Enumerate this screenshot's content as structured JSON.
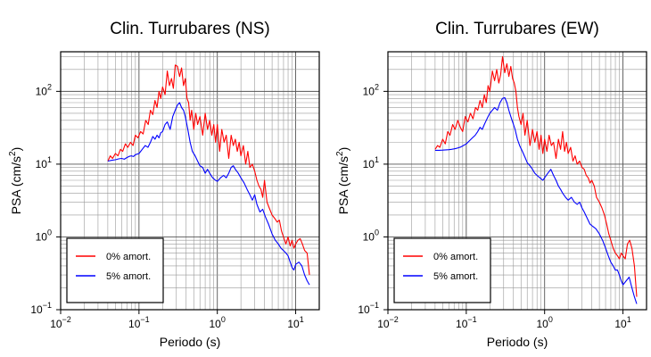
{
  "chart_data": [
    {
      "type": "line",
      "title": "Clin. Turrubares (NS)",
      "xlabel": "Periodo (s)",
      "ylabel": {
        "base": "PSA (cm/s",
        "sup": "2",
        "end": ")"
      },
      "xscale": "log",
      "yscale": "log",
      "xlim": [
        0.01,
        20
      ],
      "ylim": [
        0.1,
        350
      ],
      "grid": true,
      "legend_position": "bottom-left",
      "xticks": [
        {
          "value": 0.01,
          "base": "10",
          "exp": "−2"
        },
        {
          "value": 0.1,
          "base": "10",
          "exp": "−1"
        },
        {
          "value": 1,
          "base": "10",
          "exp": "0"
        },
        {
          "value": 10,
          "base": "10",
          "exp": "1"
        }
      ],
      "yticks": [
        {
          "value": 0.1,
          "base": "10",
          "exp": "−1"
        },
        {
          "value": 1,
          "base": "10",
          "exp": "0"
        },
        {
          "value": 10,
          "base": "10",
          "exp": "1"
        },
        {
          "value": 100,
          "base": "10",
          "exp": "2"
        }
      ],
      "series": [
        {
          "name": "0% amort.",
          "color": "#ff0000",
          "x": [
            0.04,
            0.043,
            0.046,
            0.05,
            0.054,
            0.058,
            0.062,
            0.067,
            0.072,
            0.078,
            0.084,
            0.09,
            0.097,
            0.105,
            0.113,
            0.122,
            0.131,
            0.14,
            0.15,
            0.16,
            0.17,
            0.18,
            0.19,
            0.2,
            0.215,
            0.23,
            0.245,
            0.26,
            0.275,
            0.29,
            0.31,
            0.33,
            0.35,
            0.37,
            0.39,
            0.41,
            0.43,
            0.45,
            0.47,
            0.5,
            0.53,
            0.56,
            0.6,
            0.65,
            0.7,
            0.75,
            0.8,
            0.85,
            0.9,
            0.95,
            1.0,
            1.07,
            1.14,
            1.22,
            1.3,
            1.4,
            1.5,
            1.6,
            1.7,
            1.8,
            1.9,
            2.0,
            2.15,
            2.3,
            2.45,
            2.6,
            2.8,
            3.0,
            3.2,
            3.4,
            3.6,
            3.8,
            4.0,
            4.3,
            4.6,
            5.0,
            5.4,
            5.8,
            6.2,
            6.6,
            7.0,
            7.5,
            8.0,
            8.5,
            9.0,
            9.5,
            10.0,
            10.7,
            11.4,
            12.2,
            13.0,
            14.0,
            15.0
          ],
          "y": [
            11,
            13,
            12,
            14,
            13,
            16,
            15,
            19,
            17,
            20,
            18,
            25,
            23,
            28,
            26,
            40,
            35,
            55,
            48,
            75,
            60,
            100,
            80,
            115,
            90,
            190,
            120,
            150,
            110,
            230,
            220,
            160,
            210,
            120,
            150,
            80,
            70,
            40,
            55,
            30,
            50,
            35,
            45,
            25,
            50,
            30,
            40,
            25,
            35,
            20,
            35,
            15,
            30,
            20,
            25,
            12,
            25,
            18,
            22,
            15,
            20,
            13,
            18,
            10,
            15,
            9,
            10,
            8,
            6,
            5,
            4.5,
            3.5,
            6,
            3,
            2.5,
            2.0,
            1.8,
            1.6,
            1.7,
            1.2,
            1.0,
            0.8,
            1.0,
            0.75,
            0.9,
            0.7,
            0.8,
            0.9,
            0.95,
            0.8,
            0.65,
            0.6,
            0.3
          ]
        },
        {
          "name": "5% amort.",
          "color": "#0000ff",
          "x": [
            0.04,
            0.045,
            0.05,
            0.055,
            0.06,
            0.065,
            0.07,
            0.075,
            0.08,
            0.085,
            0.09,
            0.1,
            0.11,
            0.12,
            0.13,
            0.14,
            0.15,
            0.16,
            0.17,
            0.18,
            0.19,
            0.2,
            0.215,
            0.23,
            0.25,
            0.27,
            0.29,
            0.31,
            0.33,
            0.35,
            0.37,
            0.39,
            0.42,
            0.45,
            0.48,
            0.52,
            0.56,
            0.6,
            0.65,
            0.7,
            0.75,
            0.8,
            0.87,
            0.95,
            1.0,
            1.1,
            1.2,
            1.3,
            1.4,
            1.5,
            1.6,
            1.7,
            1.85,
            2.0,
            2.2,
            2.4,
            2.6,
            2.8,
            3.0,
            3.2,
            3.5,
            3.8,
            4.1,
            4.5,
            5.0,
            5.5,
            6.0,
            6.5,
            7.0,
            7.5,
            8.0,
            8.5,
            9.0,
            9.5,
            10.0,
            11.0,
            12.0,
            13.0,
            14.0,
            15.0
          ],
          "y": [
            11,
            11.3,
            11.5,
            11.8,
            12,
            11.7,
            12.3,
            12.8,
            13,
            12.7,
            13.5,
            14,
            16,
            18,
            17,
            20,
            24,
            22,
            25,
            23,
            27,
            28,
            35,
            38,
            30,
            45,
            55,
            65,
            70,
            60,
            55,
            45,
            30,
            20,
            15,
            13,
            11,
            9.5,
            9,
            7.5,
            8.5,
            7.5,
            6.5,
            6,
            5.8,
            6.5,
            7,
            6.5,
            7.5,
            9,
            9.5,
            8.5,
            7.5,
            6.5,
            5.5,
            4.5,
            3.8,
            3.2,
            3.8,
            2.8,
            2.2,
            2.4,
            1.9,
            1.5,
            1.1,
            0.9,
            0.8,
            0.7,
            0.65,
            0.6,
            0.55,
            0.45,
            0.38,
            0.35,
            0.42,
            0.45,
            0.4,
            0.3,
            0.25,
            0.22
          ]
        }
      ]
    },
    {
      "type": "line",
      "title": "Clin. Turrubares (EW)",
      "xlabel": "Periodo (s)",
      "ylabel": {
        "base": "PSA (cm/s",
        "sup": "2",
        "end": ")"
      },
      "xscale": "log",
      "yscale": "log",
      "xlim": [
        0.01,
        20
      ],
      "ylim": [
        0.1,
        350
      ],
      "grid": true,
      "legend_position": "bottom-left",
      "xticks": [
        {
          "value": 0.01,
          "base": "10",
          "exp": "−2"
        },
        {
          "value": 0.1,
          "base": "10",
          "exp": "−1"
        },
        {
          "value": 1,
          "base": "10",
          "exp": "0"
        },
        {
          "value": 10,
          "base": "10",
          "exp": "1"
        }
      ],
      "yticks": [
        {
          "value": 0.1,
          "base": "10",
          "exp": "−1"
        },
        {
          "value": 1,
          "base": "10",
          "exp": "0"
        },
        {
          "value": 10,
          "base": "10",
          "exp": "1"
        },
        {
          "value": 100,
          "base": "10",
          "exp": "2"
        }
      ],
      "series": [
        {
          "name": "0% amort.",
          "color": "#ff0000",
          "x": [
            0.04,
            0.043,
            0.046,
            0.05,
            0.054,
            0.058,
            0.062,
            0.067,
            0.072,
            0.078,
            0.084,
            0.09,
            0.097,
            0.105,
            0.113,
            0.122,
            0.131,
            0.14,
            0.15,
            0.16,
            0.17,
            0.18,
            0.19,
            0.2,
            0.215,
            0.23,
            0.245,
            0.26,
            0.275,
            0.29,
            0.31,
            0.33,
            0.35,
            0.37,
            0.39,
            0.41,
            0.43,
            0.45,
            0.47,
            0.5,
            0.53,
            0.56,
            0.6,
            0.65,
            0.7,
            0.75,
            0.8,
            0.85,
            0.9,
            0.95,
            1.0,
            1.07,
            1.14,
            1.22,
            1.3,
            1.4,
            1.5,
            1.6,
            1.7,
            1.8,
            1.9,
            2.0,
            2.15,
            2.3,
            2.45,
            2.6,
            2.8,
            3.0,
            3.2,
            3.4,
            3.6,
            3.8,
            4.0,
            4.3,
            4.6,
            5.0,
            5.4,
            5.8,
            6.2,
            6.6,
            7.0,
            7.5,
            8.0,
            8.5,
            9.0,
            9.5,
            10.0,
            10.7,
            11.4,
            12.2,
            13.0,
            14.0,
            15.0
          ],
          "y": [
            16,
            18,
            17,
            22,
            19,
            28,
            25,
            35,
            30,
            40,
            32,
            28,
            45,
            38,
            50,
            42,
            60,
            55,
            75,
            60,
            90,
            70,
            120,
            100,
            190,
            140,
            200,
            130,
            170,
            300,
            180,
            240,
            160,
            220,
            150,
            130,
            100,
            60,
            45,
            35,
            50,
            25,
            40,
            18,
            30,
            20,
            28,
            16,
            25,
            14,
            22,
            15,
            25,
            18,
            20,
            12,
            22,
            16,
            28,
            15,
            20,
            14,
            17,
            11,
            13,
            10,
            11,
            9,
            8.5,
            7,
            6.5,
            5.5,
            6,
            5,
            3.5,
            3.0,
            2.5,
            2.0,
            1.5,
            1.1,
            0.9,
            0.7,
            0.6,
            0.55,
            0.5,
            0.6,
            0.55,
            0.5,
            0.8,
            0.9,
            0.7,
            0.4,
            0.15
          ]
        },
        {
          "name": "5% amort.",
          "color": "#0000ff",
          "x": [
            0.04,
            0.045,
            0.05,
            0.055,
            0.06,
            0.065,
            0.07,
            0.075,
            0.08,
            0.085,
            0.09,
            0.1,
            0.11,
            0.12,
            0.13,
            0.14,
            0.15,
            0.16,
            0.17,
            0.18,
            0.19,
            0.2,
            0.215,
            0.23,
            0.25,
            0.27,
            0.29,
            0.31,
            0.33,
            0.35,
            0.37,
            0.39,
            0.42,
            0.45,
            0.48,
            0.52,
            0.56,
            0.6,
            0.65,
            0.7,
            0.75,
            0.8,
            0.87,
            0.95,
            1.0,
            1.1,
            1.2,
            1.3,
            1.4,
            1.5,
            1.6,
            1.7,
            1.85,
            2.0,
            2.2,
            2.4,
            2.6,
            2.8,
            3.0,
            3.2,
            3.5,
            3.8,
            4.1,
            4.5,
            5.0,
            5.5,
            6.0,
            6.5,
            7.0,
            7.5,
            8.0,
            8.5,
            9.0,
            9.5,
            10.0,
            11.0,
            12.0,
            13.0,
            14.0,
            15.0
          ],
          "y": [
            15.5,
            15.5,
            15.6,
            15.7,
            15.8,
            16,
            16.2,
            16.5,
            16.8,
            17.2,
            17.8,
            19,
            21,
            23,
            25,
            28,
            32,
            30,
            35,
            40,
            45,
            50,
            55,
            60,
            55,
            70,
            80,
            82,
            70,
            55,
            45,
            38,
            30,
            22,
            18,
            15,
            12.5,
            10.5,
            9.5,
            8.5,
            7.5,
            7,
            6.5,
            6,
            6.5,
            7.5,
            8.5,
            7,
            6,
            5,
            4.5,
            4,
            3.5,
            3.2,
            3.5,
            3,
            2.8,
            3.0,
            2.5,
            2.2,
            1.8,
            1.5,
            1.4,
            1.3,
            1.1,
            0.9,
            0.7,
            0.55,
            0.45,
            0.4,
            0.35,
            0.35,
            0.3,
            0.25,
            0.22,
            0.25,
            0.28,
            0.2,
            0.15,
            0.12
          ]
        }
      ]
    }
  ]
}
